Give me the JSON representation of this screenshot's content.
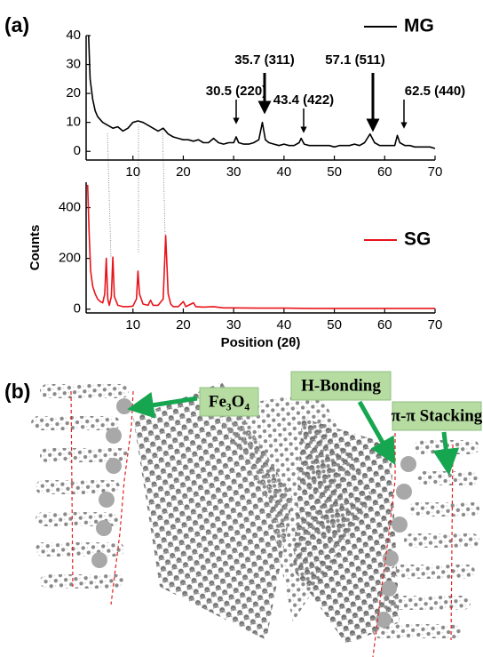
{
  "panels": {
    "a": "(a)",
    "b": "(b)"
  },
  "chart_data": [
    {
      "type": "line",
      "x": [
        1.2,
        1.5,
        2,
        2.5,
        3,
        4,
        5,
        6,
        7,
        8,
        9,
        10,
        11,
        12,
        13,
        14,
        15,
        16,
        17,
        18,
        19,
        20,
        21,
        22,
        23,
        24,
        25,
        26,
        27,
        28,
        29,
        30,
        30.5,
        31,
        32,
        33,
        34,
        35,
        35.7,
        36.3,
        37,
        38,
        39,
        40,
        41,
        42,
        43,
        43.4,
        44,
        45,
        46,
        47,
        48,
        49,
        50,
        51,
        52,
        53,
        54,
        55,
        56,
        57.1,
        58,
        59,
        60,
        61,
        62,
        62.5,
        63,
        64,
        65,
        66,
        67,
        68,
        69,
        70
      ],
      "series": [
        {
          "name": "MG",
          "color": "#000000",
          "values": [
            40,
            25,
            18,
            14,
            12,
            10,
            9,
            8,
            8.5,
            7,
            8,
            10,
            10.5,
            10,
            9,
            8,
            7,
            8,
            6,
            5,
            4.5,
            4,
            4,
            3.5,
            4,
            3,
            3,
            4.5,
            3,
            2.5,
            3,
            3,
            5,
            3,
            2.5,
            2.5,
            3,
            4,
            10,
            4,
            3,
            2.5,
            2,
            2.5,
            2,
            2,
            3,
            4.5,
            2.5,
            2,
            2,
            2,
            2,
            2,
            1.5,
            2,
            2,
            2,
            2.5,
            2,
            3,
            6,
            3,
            2,
            2,
            2,
            2,
            5.5,
            3,
            2,
            2,
            1.5,
            1.5,
            1.5,
            1.5,
            1
          ]
        }
      ],
      "annotations": [
        "30.5 (220)",
        "35.7 (311)",
        "43.4 (422)",
        "57.1 (511)",
        "62.5 (440)"
      ],
      "xlim": [
        0.7,
        70
      ],
      "ylim": [
        -3,
        40
      ],
      "xticks": [
        10,
        20,
        30,
        40,
        50,
        60,
        70
      ],
      "yticks": [
        0,
        10,
        20,
        30,
        40
      ]
    },
    {
      "type": "line",
      "x": [
        1,
        1.3,
        1.6,
        2,
        2.5,
        3,
        3.5,
        4,
        4.4,
        4.7,
        5,
        5.3,
        5.7,
        6,
        6.3,
        7,
        8,
        9,
        10,
        10.7,
        11,
        11.3,
        12,
        13,
        13.5,
        14,
        15,
        16,
        16.5,
        17,
        17.5,
        18,
        19,
        20,
        20.5,
        22,
        22.5,
        24,
        26,
        28,
        30,
        35,
        40,
        45,
        50,
        55,
        60,
        65,
        70
      ],
      "series": [
        {
          "name": "SG",
          "color": "#e8141b",
          "values": [
            490,
            300,
            150,
            90,
            60,
            40,
            30,
            25,
            60,
            200,
            40,
            15,
            50,
            205,
            50,
            15,
            10,
            10,
            12,
            40,
            150,
            60,
            20,
            15,
            35,
            15,
            15,
            40,
            290,
            60,
            20,
            10,
            10,
            30,
            10,
            25,
            10,
            8,
            10,
            5,
            5,
            4,
            4,
            3,
            3,
            3,
            3,
            3,
            3
          ]
        }
      ],
      "xlabel": "Position (2θ)",
      "ylabel": "Counts",
      "xlim": [
        0.7,
        70
      ],
      "ylim": [
        -15,
        500
      ],
      "xticks": [
        10,
        20,
        30,
        40,
        50,
        60,
        70
      ],
      "yticks": [
        0,
        200,
        400
      ]
    }
  ],
  "diagram": {
    "labels": [
      "Fe₃O₄",
      "H-Bonding",
      "π-π Stacking"
    ]
  }
}
